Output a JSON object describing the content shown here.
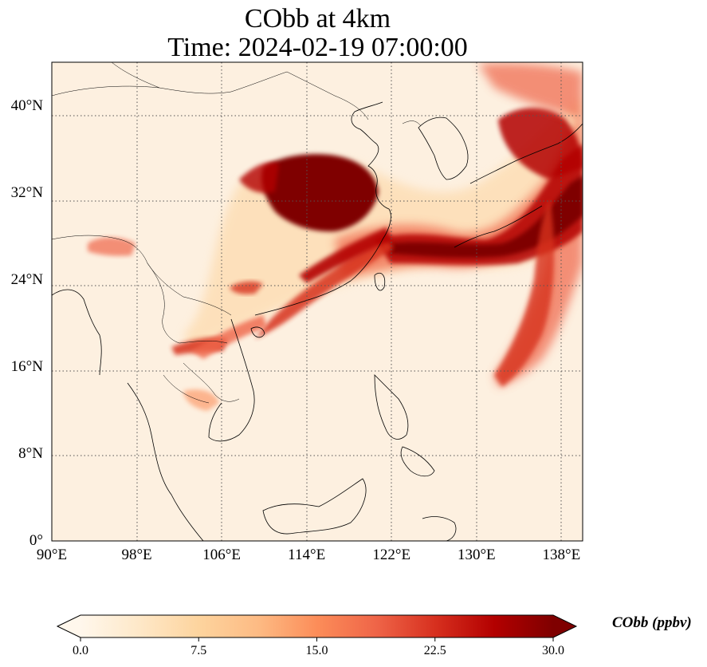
{
  "title": {
    "line1": "CObb at 4km",
    "line2": "Time: 2024-02-19 07:00:00"
  },
  "map": {
    "lon_range": [
      90,
      140
    ],
    "lat_range": [
      0,
      44
    ],
    "lon_ticks": [
      "90°E",
      "98°E",
      "106°E",
      "114°E",
      "122°E",
      "130°E",
      "138°E"
    ],
    "lat_ticks": [
      "0°",
      "8°N",
      "16°N",
      "24°N",
      "32°N",
      "40°N"
    ],
    "gridline_style": "dotted",
    "field_variable": "CObb",
    "plume_descriptions_visible": false
  },
  "colorbar": {
    "label": "CObb (ppbv)",
    "range": [
      0,
      30
    ],
    "ticks": [
      "0.0",
      "7.5",
      "15.0",
      "22.5",
      "30.0"
    ],
    "colormap": "OrRd",
    "extend": "both",
    "colors": [
      "#fff7ec",
      "#fee8c8",
      "#fdd49e",
      "#fdbb84",
      "#fc8d59",
      "#ef6548",
      "#d7301f",
      "#b30000",
      "#7f0000"
    ]
  }
}
